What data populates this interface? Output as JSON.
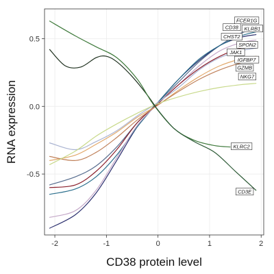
{
  "chart_data": {
    "type": "line",
    "title": "",
    "xlabel": "CD38 protein level",
    "ylabel": "RNA expression",
    "xlim": [
      -2.2,
      2.05
    ],
    "ylim": [
      -0.95,
      0.72
    ],
    "x_ticks": [
      -2,
      -1,
      0,
      1,
      2
    ],
    "x_tick_labels": [
      "-2",
      "-1",
      "0",
      "1",
      "2"
    ],
    "y_ticks": [
      -0.5,
      0.0,
      0.5
    ],
    "y_tick_labels": [
      "-0.5",
      "0.0",
      "0.5"
    ],
    "grid": true,
    "legend": "inline callout labels at right end of lines",
    "series": [
      {
        "name": "FCER1G",
        "color": "#556b8d",
        "x": [
          -2.1,
          -1.6,
          -1.2,
          -0.8,
          -0.4,
          0,
          0.4,
          0.8,
          1.2,
          1.6,
          1.9
        ],
        "y": [
          -0.58,
          -0.52,
          -0.44,
          -0.3,
          -0.12,
          0.03,
          0.18,
          0.33,
          0.45,
          0.54,
          0.57
        ]
      },
      {
        "name": "CD38",
        "color": "#2b2f6e",
        "x": [
          -2.1,
          -1.6,
          -1.2,
          -0.8,
          -0.4,
          0,
          0.4,
          0.8,
          1.2,
          1.6,
          1.9
        ],
        "y": [
          -0.9,
          -0.8,
          -0.64,
          -0.4,
          -0.15,
          0.03,
          0.2,
          0.34,
          0.45,
          0.51,
          0.53
        ]
      },
      {
        "name": "KLRB1",
        "color": "#2a6e8c",
        "x": [
          -2.1,
          -1.6,
          -1.2,
          -0.8,
          -0.4,
          0,
          0.4,
          0.8,
          1.2,
          1.6,
          1.9
        ],
        "y": [
          -0.65,
          -0.61,
          -0.52,
          -0.36,
          -0.15,
          0.03,
          0.2,
          0.35,
          0.45,
          0.52,
          0.55
        ]
      },
      {
        "name": "CHST2",
        "color": "#c4a8c8",
        "x": [
          -2.1,
          -1.6,
          -1.2,
          -0.8,
          -0.4,
          0,
          0.4,
          0.8,
          1.2,
          1.6,
          1.9
        ],
        "y": [
          -0.82,
          -0.77,
          -0.62,
          -0.38,
          -0.14,
          0.02,
          0.16,
          0.3,
          0.41,
          0.47,
          0.49
        ]
      },
      {
        "name": "SPON2",
        "color": "#8a1f2b",
        "x": [
          -2.1,
          -1.6,
          -1.2,
          -0.8,
          -0.4,
          0,
          0.4,
          0.8,
          1.2,
          1.6,
          1.9
        ],
        "y": [
          -0.6,
          -0.58,
          -0.48,
          -0.32,
          -0.12,
          0.02,
          0.16,
          0.28,
          0.37,
          0.43,
          0.45
        ]
      },
      {
        "name": "JAK1",
        "color": "#a9b3d1",
        "x": [
          -2.1,
          -1.6,
          -1.2,
          -0.8,
          -0.4,
          0,
          0.4,
          0.8,
          1.2,
          1.6,
          1.9
        ],
        "y": [
          -0.27,
          -0.32,
          -0.26,
          -0.18,
          -0.07,
          0.03,
          0.14,
          0.27,
          0.36,
          0.41,
          0.43
        ]
      },
      {
        "name": "IGFBP7",
        "color": "#e2a96b",
        "x": [
          -2.1,
          -1.6,
          -1.2,
          -0.8,
          -0.4,
          0,
          0.4,
          0.8,
          1.2,
          1.6,
          1.9
        ],
        "y": [
          -0.4,
          -0.36,
          -0.28,
          -0.19,
          -0.08,
          0.01,
          0.12,
          0.22,
          0.3,
          0.35,
          0.37
        ]
      },
      {
        "name": "GZMB",
        "color": "#c0815a",
        "x": [
          -2.1,
          -1.6,
          -1.2,
          -0.8,
          -0.4,
          0,
          0.4,
          0.8,
          1.2,
          1.6,
          1.9
        ],
        "y": [
          -0.37,
          -0.4,
          -0.34,
          -0.23,
          -0.1,
          0.01,
          0.11,
          0.2,
          0.27,
          0.32,
          0.34
        ]
      },
      {
        "name": "NKG7",
        "color": "#c8d98a",
        "x": [
          -2.1,
          -1.6,
          -1.2,
          -0.8,
          -0.4,
          0,
          0.4,
          0.8,
          1.2,
          1.6,
          1.9
        ],
        "y": [
          -0.43,
          -0.33,
          -0.22,
          -0.13,
          -0.05,
          0.02,
          0.07,
          0.11,
          0.14,
          0.16,
          0.17
        ]
      },
      {
        "name": "",
        "color": "#1c2e1c",
        "x": [
          -2.1,
          -1.8,
          -1.5,
          -1.2,
          -1.0,
          -0.8,
          -0.5,
          -0.2,
          0
        ],
        "y": [
          0.42,
          0.3,
          0.29,
          0.36,
          0.37,
          0.33,
          0.22,
          0.08,
          -0.03
        ]
      },
      {
        "name": "KLRC2",
        "color": "#3f7a3c",
        "x": [
          -2.1,
          -1.6,
          -1.2,
          -0.8,
          -0.4,
          -0.1,
          0.3,
          0.7,
          1.1,
          1.4
        ],
        "y": [
          0.63,
          0.52,
          0.44,
          0.36,
          0.2,
          0.02,
          -0.16,
          -0.25,
          -0.29,
          -0.3
        ]
      },
      {
        "name": "CD3E",
        "color": "#2d5a36",
        "x": [
          -0.1,
          0.3,
          0.7,
          1.1,
          1.5,
          1.9
        ],
        "y": [
          0.02,
          -0.16,
          -0.26,
          -0.34,
          -0.48,
          -0.62
        ]
      }
    ],
    "callouts": [
      {
        "label": "FCER1G",
        "x": 1.72,
        "y": 0.635
      },
      {
        "label": "CD38",
        "x": 1.43,
        "y": 0.585
      },
      {
        "label": "KLRB1",
        "x": 1.83,
        "y": 0.575
      },
      {
        "label": "CHST2",
        "x": 1.43,
        "y": 0.515
      },
      {
        "label": "SPON2",
        "x": 1.73,
        "y": 0.455
      },
      {
        "label": "JAK1",
        "x": 1.51,
        "y": 0.4
      },
      {
        "label": "IGFBP7",
        "x": 1.72,
        "y": 0.345
      },
      {
        "label": "GZMB",
        "x": 1.68,
        "y": 0.285
      },
      {
        "label": "NKG7",
        "x": 1.73,
        "y": 0.22
      },
      {
        "label": "KLRC2",
        "x": 1.62,
        "y": -0.295
      },
      {
        "label": "CD3E",
        "x": 1.68,
        "y": -0.63
      }
    ]
  }
}
